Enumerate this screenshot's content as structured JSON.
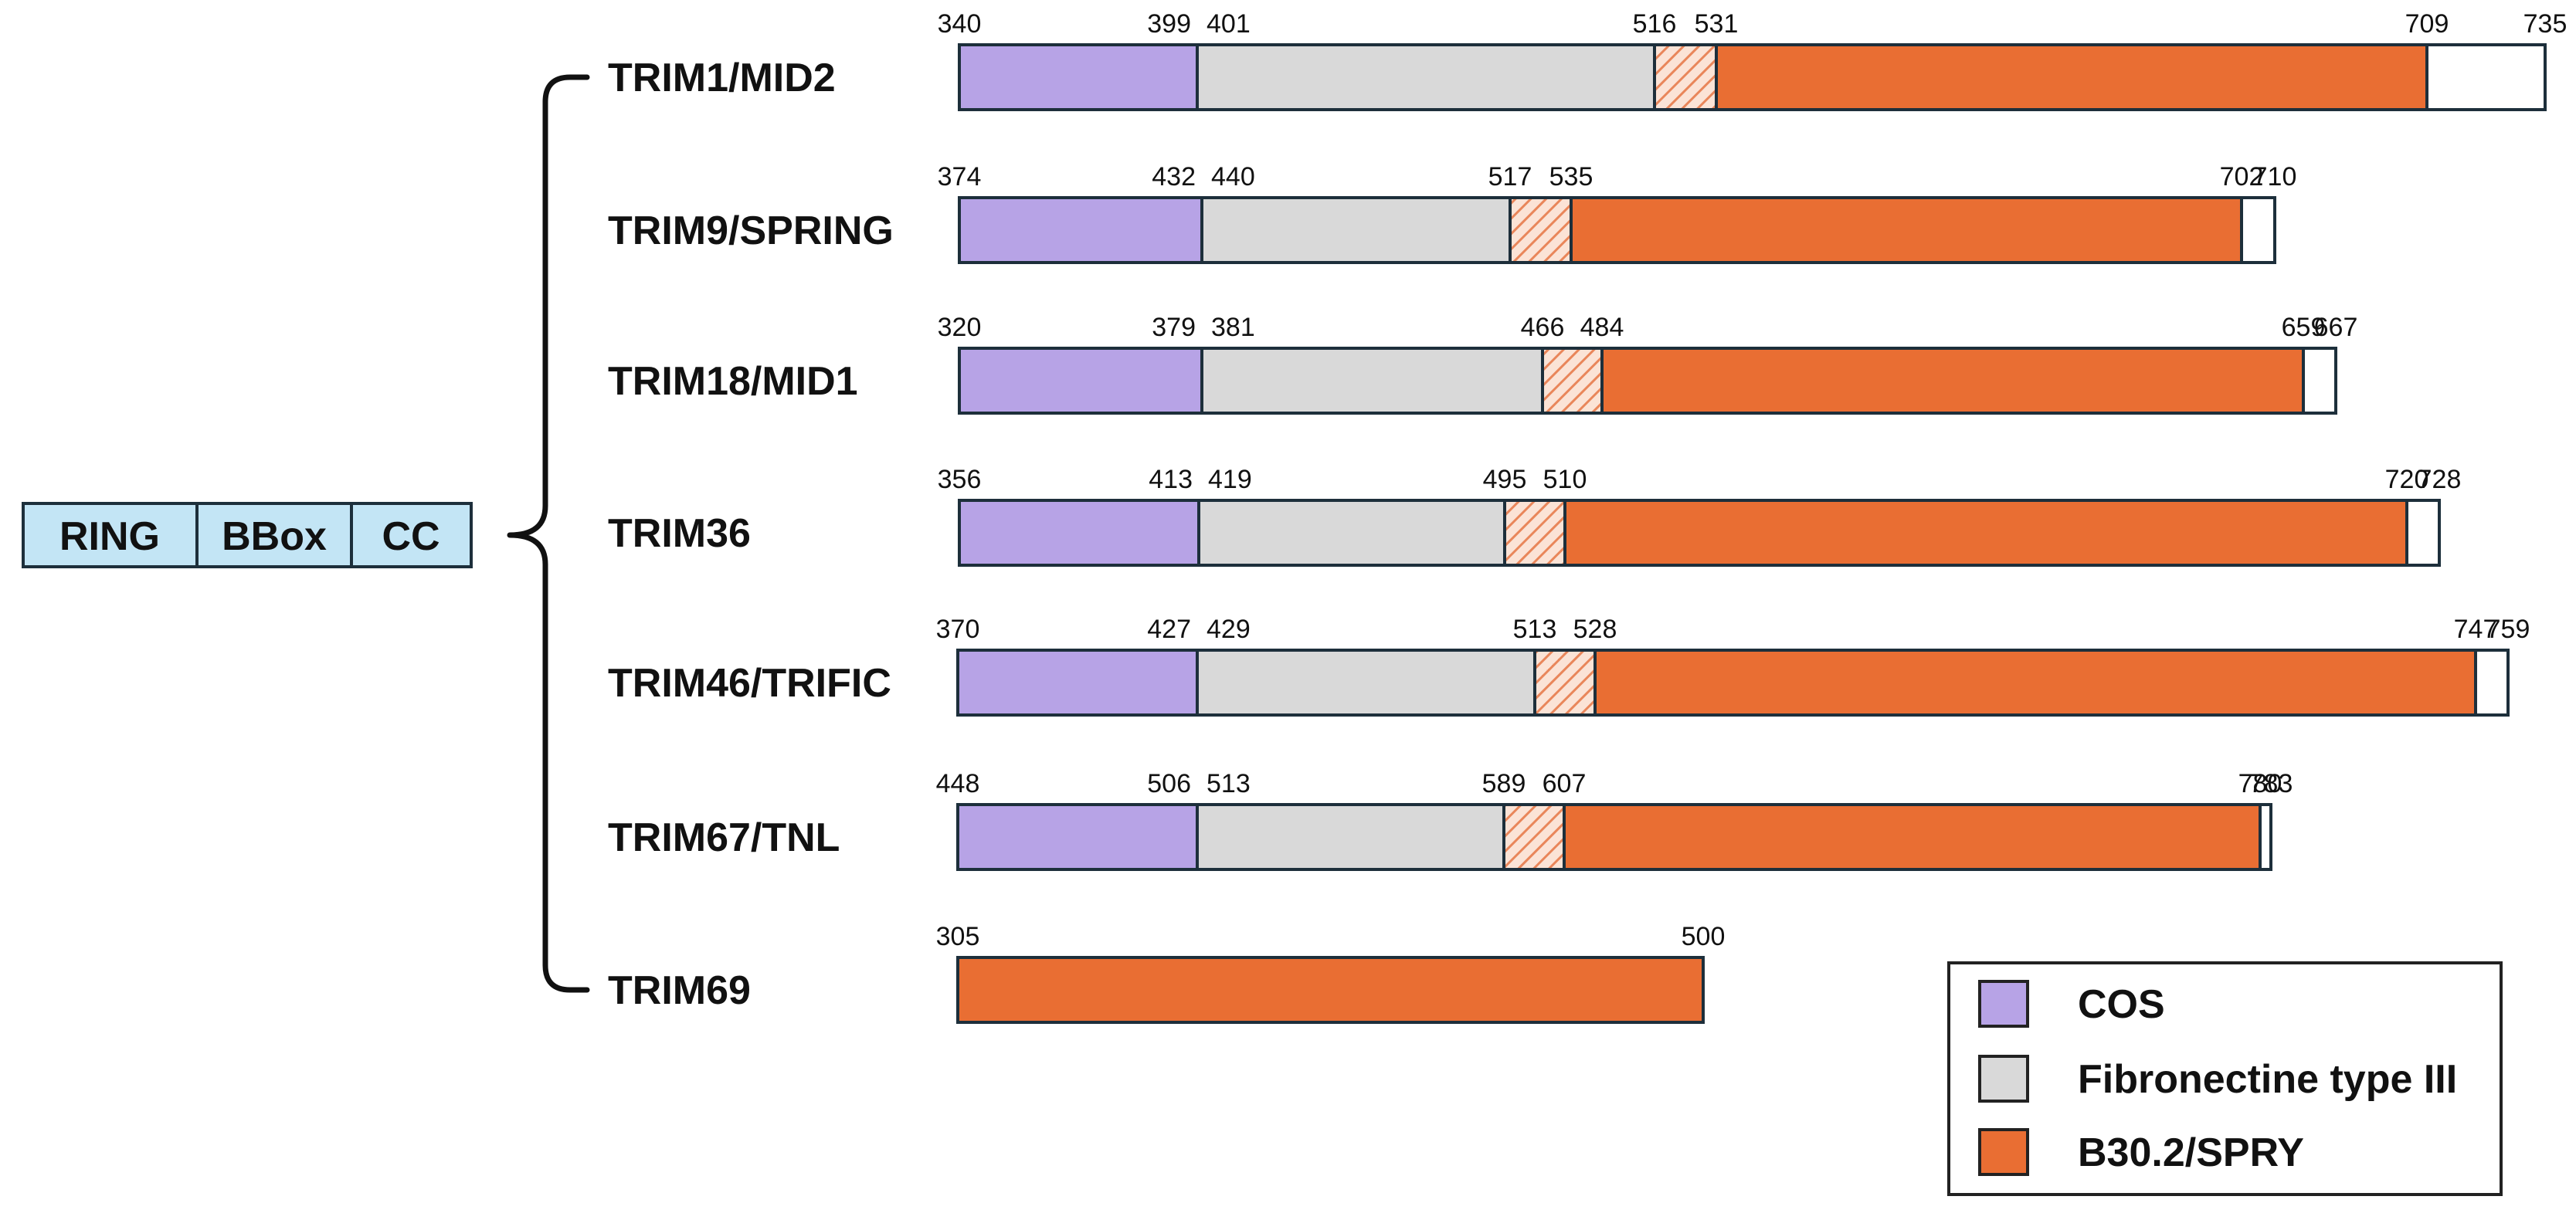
{
  "figure": {
    "left_box": {
      "segments": [
        {
          "name": "ring",
          "label": "RING"
        },
        {
          "name": "bbox",
          "label": "BBox"
        },
        {
          "name": "cc",
          "label": "CC"
        }
      ]
    },
    "proteins": [
      {
        "name": "TRIM1/MID2",
        "boundaries": [
          340,
          399,
          401,
          516,
          531,
          709,
          735
        ],
        "segments": [
          "cos",
          "fn3",
          "hatch",
          "spry",
          "empty"
        ]
      },
      {
        "name": "TRIM9/SPRING",
        "boundaries": [
          374,
          432,
          440,
          517,
          535,
          702,
          710
        ],
        "segments": [
          "cos",
          "fn3",
          "hatch",
          "spry",
          "empty"
        ]
      },
      {
        "name": "TRIM18/MID1",
        "boundaries": [
          320,
          379,
          381,
          466,
          484,
          659,
          667
        ],
        "segments": [
          "cos",
          "fn3",
          "hatch",
          "spry",
          "empty"
        ]
      },
      {
        "name": "TRIM36",
        "boundaries": [
          356,
          413,
          419,
          495,
          510,
          720,
          728
        ],
        "segments": [
          "cos",
          "fn3",
          "hatch",
          "spry",
          "empty"
        ]
      },
      {
        "name": "TRIM46/TRIFIC",
        "boundaries": [
          370,
          427,
          429,
          513,
          528,
          747,
          759
        ],
        "segments": [
          "cos",
          "fn3",
          "hatch",
          "spry",
          "empty"
        ]
      },
      {
        "name": "TRIM67/TNL",
        "boundaries": [
          448,
          506,
          513,
          589,
          607,
          780,
          783
        ],
        "segments": [
          "cos",
          "fn3",
          "hatch",
          "spry",
          "empty"
        ]
      },
      {
        "name": "TRIM69",
        "boundaries": [
          305,
          500
        ],
        "segments": [
          "spry"
        ]
      }
    ],
    "legend": [
      {
        "key": "cos",
        "label": "COS"
      },
      {
        "key": "fn3",
        "label": "Fibronectine type III"
      },
      {
        "key": "spry",
        "label": "B30.2/SPRY"
      }
    ],
    "colors": {
      "cos": "#b7a3e6",
      "fn3": "#d9d9d9",
      "spry": "#e96e33",
      "empty": "#ffffff",
      "hatch_bg": "#fbe3d6",
      "hatch_line": "#e9865a",
      "left_box": "#c3e5f5",
      "outline": "#1d2f3b"
    }
  }
}
